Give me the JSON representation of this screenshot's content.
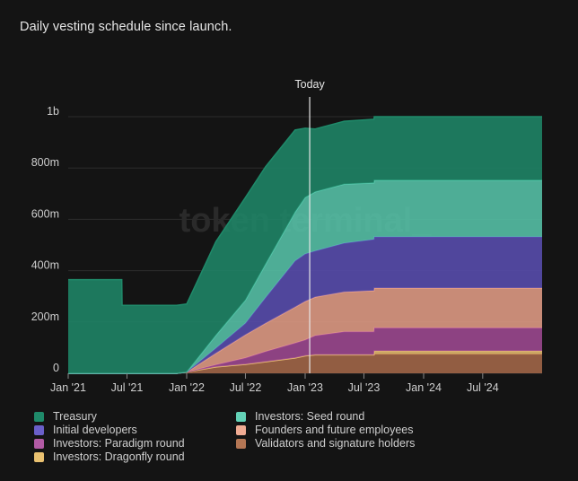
{
  "title": "Daily vesting schedule since launch.",
  "watermark": "token terminal_",
  "today_label": "Today",
  "colors": {
    "background": "#141414",
    "grid": "#2d2d2d",
    "axis_text": "#cfcfcf",
    "today_line": "#e8e8e8"
  },
  "chart_data": {
    "type": "area",
    "stacked": true,
    "x_tick_labels": [
      "Jan '21",
      "Jul '21",
      "Jan '22",
      "Jul '22",
      "Jan '23",
      "Jul '23",
      "Jan '24",
      "Jul '24"
    ],
    "y_tick_labels": [
      "0",
      "200m",
      "400m",
      "600m",
      "800m",
      "1b"
    ],
    "ylim": [
      0,
      1000
    ],
    "y_unit": "millions",
    "today_marker": "2023-01-15",
    "grid": true,
    "legend_position": "bottom",
    "x": [
      "2021-01-01",
      "2021-06-15",
      "2021-06-16",
      "2021-12-01",
      "2022-01-01",
      "2022-04-01",
      "2022-07-01",
      "2022-09-01",
      "2022-12-01",
      "2023-01-01",
      "2023-02-01",
      "2023-05-01",
      "2023-08-01",
      "2023-08-02",
      "2024-01-01",
      "2024-07-01",
      "2024-12-31"
    ],
    "series": [
      {
        "name": "Validators and signature holders",
        "color": "#a86a4a",
        "values": [
          0,
          0,
          0,
          0,
          5,
          25,
          35,
          45,
          60,
          68,
          72,
          72,
          72,
          75,
          75,
          75,
          75
        ]
      },
      {
        "name": "Investors: Dragonfly round",
        "color": "#e9c170",
        "values": [
          0,
          0,
          0,
          0,
          0,
          0,
          0,
          0,
          0,
          0,
          0,
          0,
          0,
          12,
          12,
          12,
          12
        ]
      },
      {
        "name": "Investors: Paradigm round",
        "color": "#a24a95",
        "values": [
          0,
          0,
          0,
          0,
          0,
          8,
          25,
          40,
          58,
          62,
          75,
          90,
          90,
          90,
          90,
          90,
          90
        ]
      },
      {
        "name": "Founders and future employees",
        "color": "#e8a088",
        "values": [
          0,
          0,
          0,
          0,
          0,
          45,
          90,
          110,
          140,
          150,
          150,
          155,
          160,
          155,
          155,
          155,
          155
        ]
      },
      {
        "name": "Initial developers",
        "color": "#5a4fb4",
        "values": [
          0,
          0,
          0,
          0,
          0,
          20,
          45,
          100,
          180,
          185,
          180,
          190,
          200,
          200,
          200,
          200,
          200
        ]
      },
      {
        "name": "Investors: Seed round",
        "color": "#58c8ad",
        "values": [
          0,
          0,
          0,
          0,
          0,
          50,
          90,
          130,
          190,
          220,
          230,
          230,
          220,
          220,
          220,
          220,
          220
        ]
      },
      {
        "name": "Treasury",
        "color": "#1f8a6a",
        "values": [
          365,
          365,
          265,
          265,
          265,
          365,
          400,
          380,
          320,
          270,
          245,
          245,
          248,
          248,
          248,
          248,
          248
        ]
      }
    ]
  },
  "legend": [
    {
      "label": "Treasury",
      "color": "#1f8a6a"
    },
    {
      "label": "Investors: Seed round",
      "color": "#63d1b6"
    },
    {
      "label": "Initial developers",
      "color": "#6a5fc9"
    },
    {
      "label": "Founders and future employees",
      "color": "#f0ab93"
    },
    {
      "label": "Investors: Paradigm round",
      "color": "#b25aa4"
    },
    {
      "label": "Validators and signature holders",
      "color": "#b47654"
    },
    {
      "label": "Investors: Dragonfly round",
      "color": "#e9c170"
    }
  ]
}
